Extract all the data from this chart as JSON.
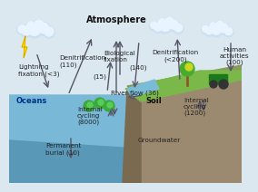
{
  "bg_color": "#dce8f0",
  "ocean_top_color": "#7ab8d8",
  "ocean_bot_color": "#5a98b8",
  "soil_color": "#9b8a70",
  "soil_face_color": "#7a6a50",
  "grass_color": "#7ab84a",
  "river_color": "#7abcd8",
  "cloud_color": "#cce0f0",
  "cloud_highlight": "#e8f4ff",
  "arrow_color": "#555566",
  "text_color": "#222222",
  "white": "#ffffff",
  "lightning_color": "#FFE000",
  "green_dot": "#3aaa3a",
  "tree_color": "#4aaa30",
  "tree_trunk": "#8B5A2B",
  "ocean_label_color": "#00338a",
  "soil_label_color": "#111100",
  "labels": {
    "atmosphere": "Atmosphere",
    "oceans": "Oceans",
    "soil": "Soil",
    "groundwater": "Groundwater",
    "lightning": "Lightning\nfixation (<3)",
    "denitrification_left": "Denitrification\n(110)",
    "bio_fixation": "Biological\nfixation",
    "val_15": "(15)",
    "val_140": "(140)",
    "river_flow": "River flow (36)",
    "denitrification_right": "Denitrification\n(<200)",
    "human": "Human\nactivities\n(100)",
    "internal_cycling_ocean": "Internal\ncycling\n(8000)",
    "permanent_burial": "Permanent\nburial (10)",
    "internal_cycling_soil": "Internal\ncycling\n(1200)"
  }
}
